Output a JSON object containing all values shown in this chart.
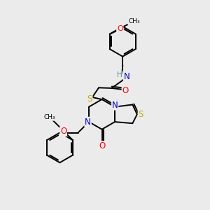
{
  "bg_color": "#ebebeb",
  "atom_colors": {
    "C": "#000000",
    "N": "#0000cc",
    "O": "#ff0000",
    "S": "#ccaa00",
    "H": "#4a8888"
  },
  "line_color": "#000000",
  "line_width": 1.4,
  "figsize": [
    3.0,
    3.0
  ],
  "dpi": 100,
  "xlim": [
    0,
    10
  ],
  "ylim": [
    0,
    10
  ]
}
